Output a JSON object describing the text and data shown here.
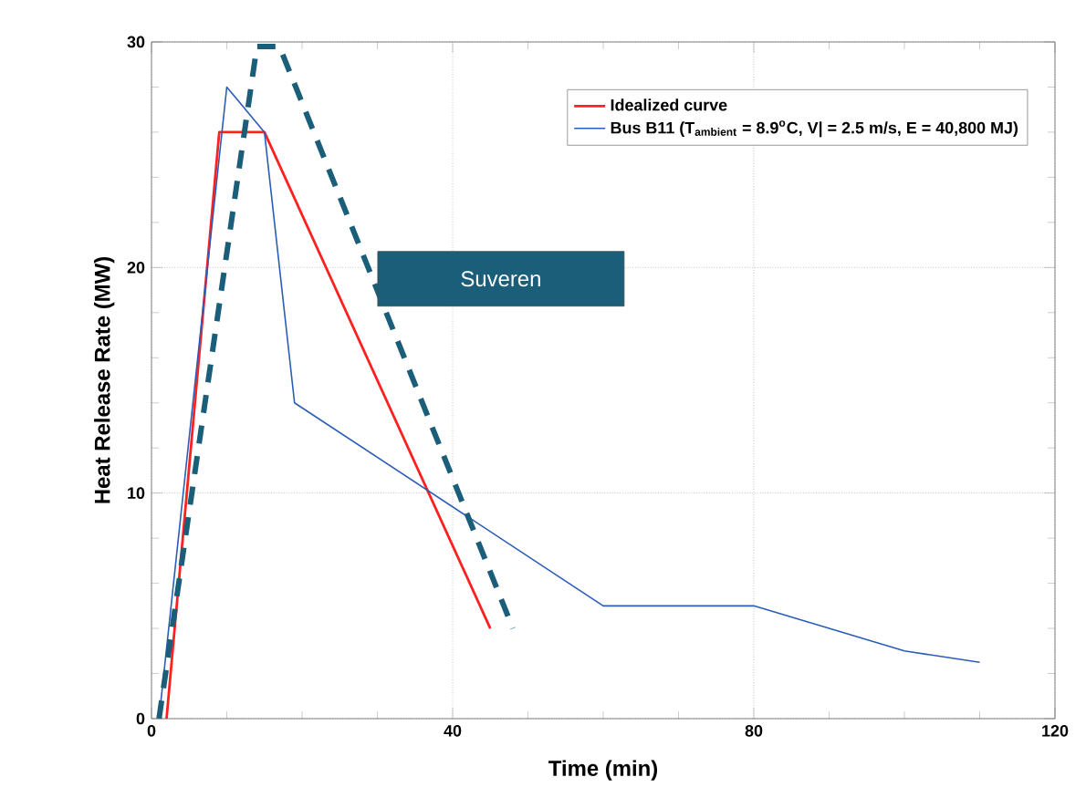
{
  "chart_data": {
    "type": "line",
    "xlabel": "Time (min)",
    "ylabel": "Heat Release Rate (MW)",
    "xlim": [
      0,
      120
    ],
    "ylim": [
      0,
      30
    ],
    "xticks": [
      0,
      40,
      80,
      120
    ],
    "yticks": [
      0,
      10,
      20,
      30
    ],
    "grid": true,
    "legend": "top right",
    "series": [
      {
        "name": "Idealized curve",
        "color": "#ff2020",
        "x": [
          2,
          9,
          15,
          45
        ],
        "values": [
          0,
          26,
          26,
          4
        ]
      },
      {
        "name": "Bus B11 (T$_{ambient}$ = 8.9$^{o}$C, V| = 2.5 m/s, E = 40,800 MJ)",
        "color": "#2a5cb8",
        "x": [
          1,
          10,
          15,
          19,
          60,
          80,
          100,
          110
        ],
        "values": [
          0,
          28,
          26,
          14,
          5,
          5,
          3,
          2.5
        ]
      },
      {
        "name": "Suveren",
        "color": "#1a5e7a",
        "line_style": "dashed",
        "x": [
          1,
          14,
          17,
          48
        ],
        "values": [
          0,
          29.8,
          29.8,
          4
        ]
      }
    ]
  }
}
